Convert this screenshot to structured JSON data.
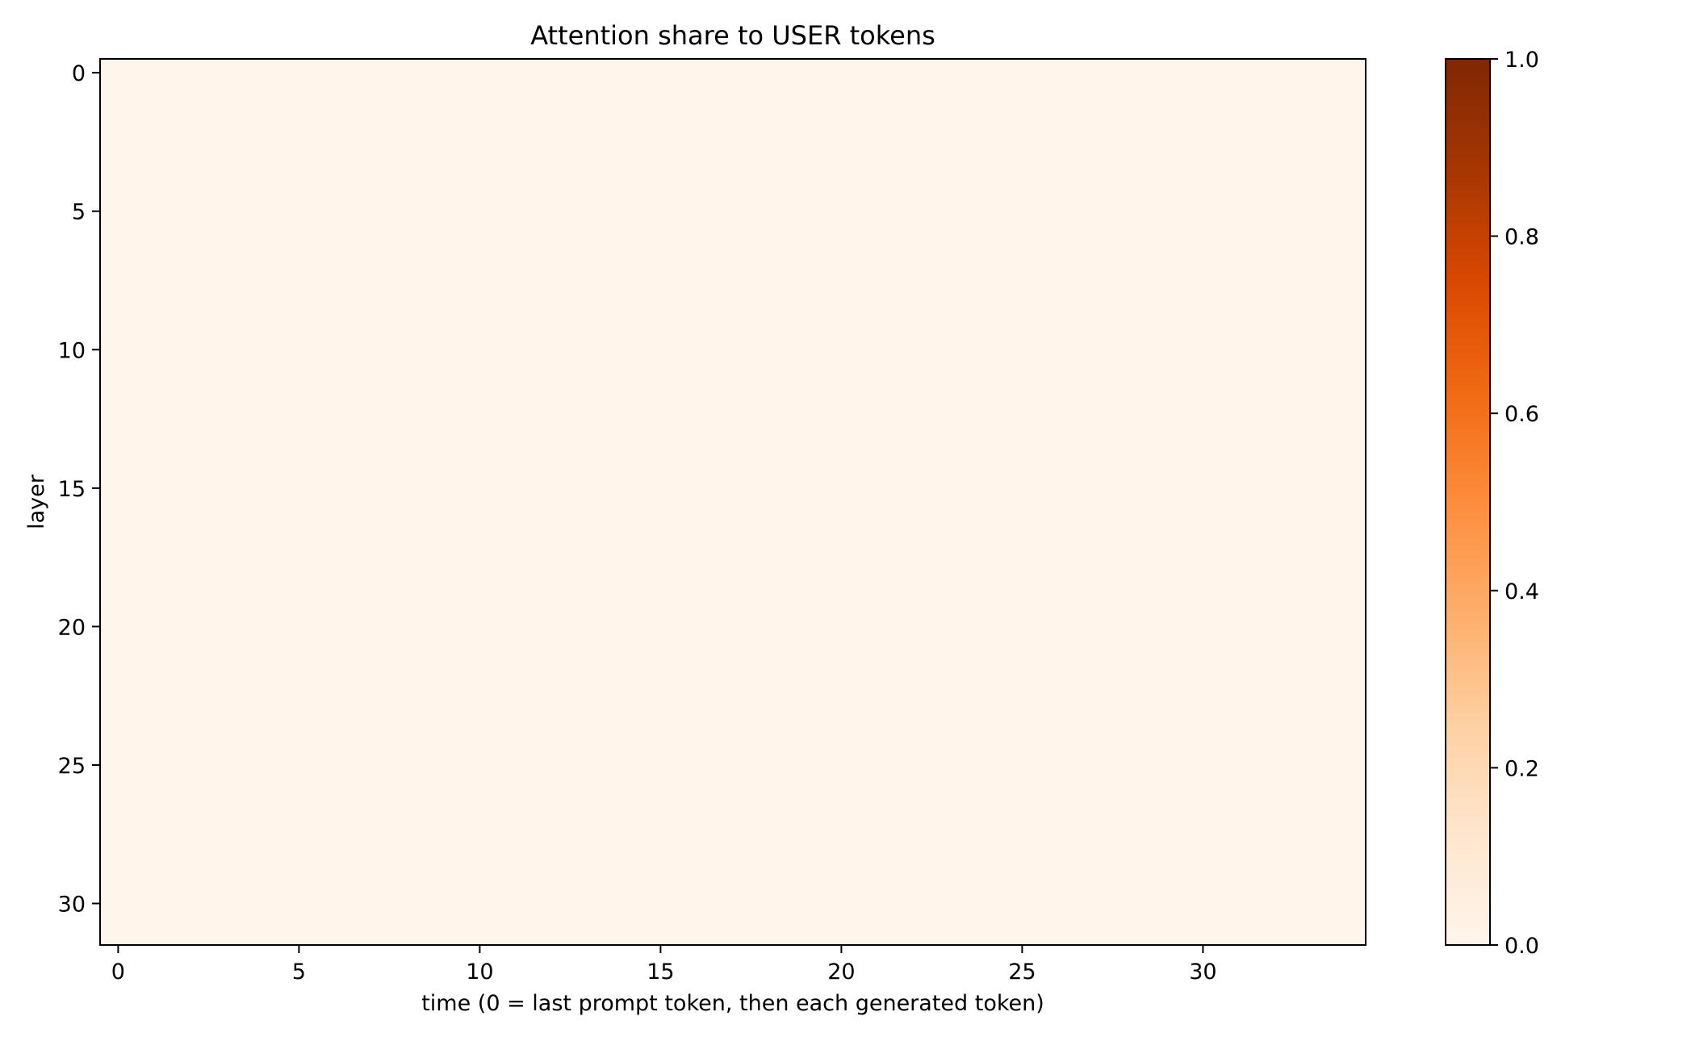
{
  "chart_data": {
    "type": "heatmap",
    "title": "Attention share to USER tokens",
    "xlabel": "time (0 = last prompt token, then each generated token)",
    "ylabel": "layer",
    "rows": 32,
    "cols": 35,
    "fill_value": 0.0,
    "xlim": [
      -0.5,
      34.5
    ],
    "ylim": [
      31.5,
      -0.5
    ],
    "x_ticks": [
      0,
      5,
      10,
      15,
      20,
      25,
      30
    ],
    "y_ticks": [
      0,
      5,
      10,
      15,
      20,
      25,
      30
    ],
    "colorbar": {
      "colormap": "Oranges",
      "range": [
        0.0,
        1.0
      ],
      "ticks": [
        "0.0",
        "0.2",
        "0.4",
        "0.6",
        "0.8",
        "1.0"
      ],
      "colors": [
        "#fff5eb",
        "#fee6ce",
        "#fdd0a2",
        "#fdae6b",
        "#fd8d3c",
        "#f16913",
        "#d94801",
        "#a63603",
        "#7f2704"
      ]
    },
    "grid": false
  }
}
